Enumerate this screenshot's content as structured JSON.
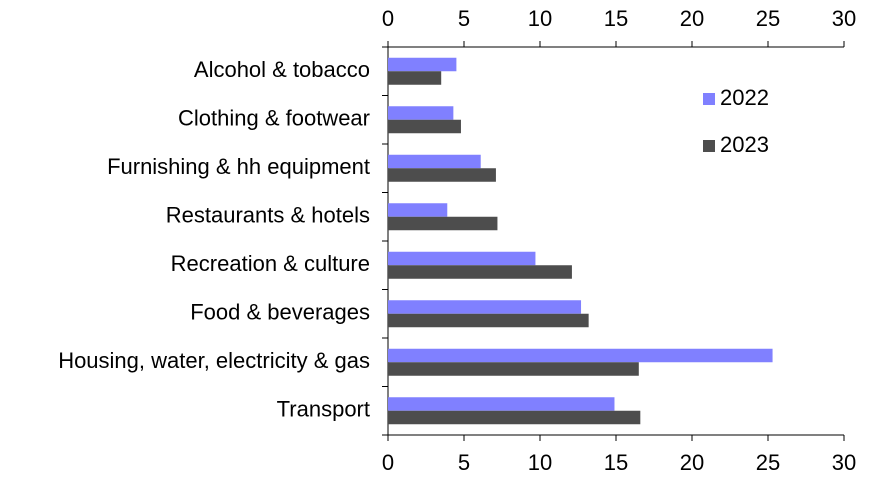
{
  "chart_data": {
    "type": "barh",
    "categories": [
      "Alcohol & tobacco",
      "Clothing & footwear",
      "Furnishing & hh equipment",
      "Restaurants & hotels",
      "Recreation & culture",
      "Food & beverages",
      "Housing, water, electricity & gas",
      "Transport"
    ],
    "series": [
      {
        "name": "2022",
        "color": "#8080ff",
        "values": [
          4.5,
          4.3,
          6.1,
          3.9,
          9.7,
          12.7,
          25.3,
          14.9
        ]
      },
      {
        "name": "2023",
        "color": "#4d4d4d",
        "values": [
          3.5,
          4.8,
          7.1,
          7.2,
          12.1,
          13.2,
          16.5,
          16.6
        ]
      }
    ],
    "xlim": [
      0,
      30
    ],
    "xticks": [
      0,
      5,
      10,
      15,
      20,
      25,
      30
    ],
    "legend": "upper right"
  }
}
